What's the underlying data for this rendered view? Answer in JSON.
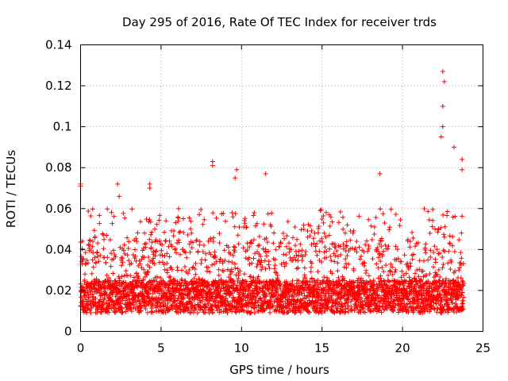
{
  "chart_data": {
    "type": "scatter",
    "title": "Day 295 of 2016, Rate Of TEC Index for receiver trds",
    "xlabel": "GPS time / hours",
    "ylabel": "ROTI / TECUs",
    "xlim": [
      0,
      25
    ],
    "ylim": [
      0,
      0.14
    ],
    "x_ticks": [
      0,
      5,
      10,
      15,
      20,
      25
    ],
    "y_ticks": [
      0,
      0.02,
      0.04,
      0.06,
      0.08,
      0.1,
      0.12,
      0.14
    ],
    "x_tick_labels": [
      "0",
      "5",
      "10",
      "15",
      "20",
      "25"
    ],
    "y_tick_labels": [
      "0",
      "0.02",
      "0.04",
      "0.06",
      "0.08",
      "0.1",
      "0.12",
      "0.14"
    ],
    "grid": true,
    "marker": "+",
    "series": [
      {
        "name": "ROTI",
        "color": "#ff0000",
        "data_range_hours": [
          0,
          23.8
        ],
        "baseline_roti": 0.017,
        "typical_upper_roti": 0.045,
        "notable_points": [
          {
            "x": 0.0,
            "y": 0.071
          },
          {
            "x": 0.0,
            "y": 0.072
          },
          {
            "x": 2.3,
            "y": 0.072
          },
          {
            "x": 2.4,
            "y": 0.066
          },
          {
            "x": 4.3,
            "y": 0.072
          },
          {
            "x": 4.3,
            "y": 0.07
          },
          {
            "x": 8.2,
            "y": 0.083
          },
          {
            "x": 8.2,
            "y": 0.081
          },
          {
            "x": 9.7,
            "y": 0.079
          },
          {
            "x": 9.6,
            "y": 0.075
          },
          {
            "x": 11.5,
            "y": 0.077
          },
          {
            "x": 18.6,
            "y": 0.077
          },
          {
            "x": 22.5,
            "y": 0.127
          },
          {
            "x": 22.6,
            "y": 0.122
          },
          {
            "x": 22.5,
            "y": 0.11
          },
          {
            "x": 22.5,
            "y": 0.1
          },
          {
            "x": 22.4,
            "y": 0.095
          },
          {
            "x": 23.2,
            "y": 0.09
          },
          {
            "x": 23.7,
            "y": 0.084
          },
          {
            "x": 23.7,
            "y": 0.079
          }
        ]
      }
    ]
  }
}
